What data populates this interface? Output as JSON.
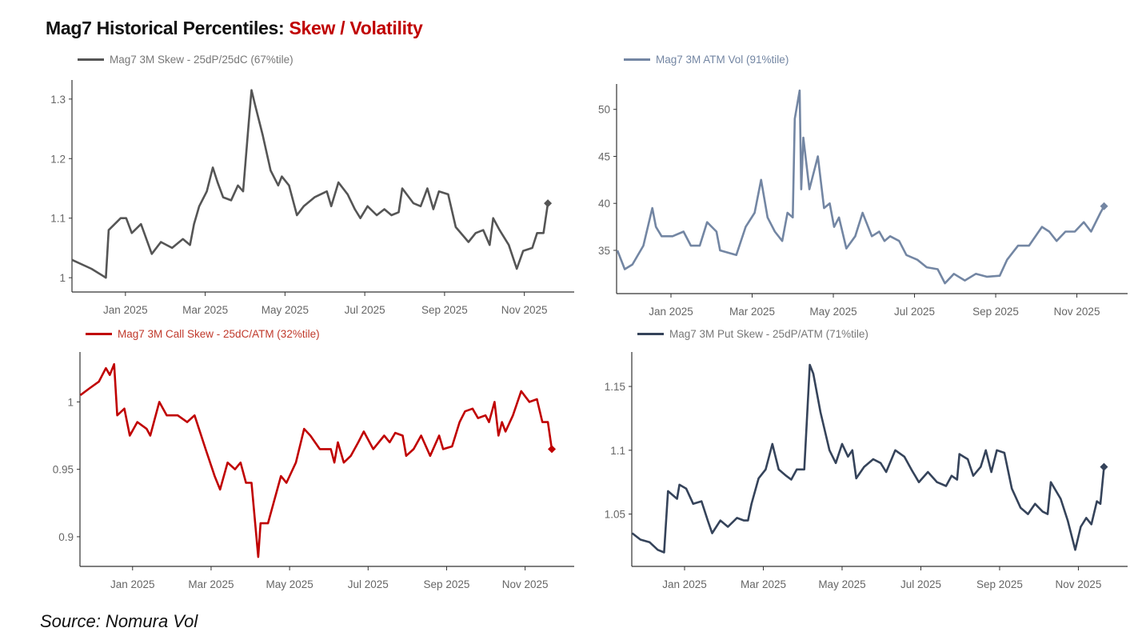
{
  "title": {
    "main": "Mag7 Historical Percentiles: ",
    "accent": "Skew / Volatility"
  },
  "source": "Source: Nomura Vol",
  "chart_data": [
    {
      "type": "line",
      "legend": "Mag7 3M Skew - 25dP/25dC (67%tile)",
      "color": "#555555",
      "xticks": [
        "Jan 2025",
        "Mar 2025",
        "May 2025",
        "Jul 2025",
        "Sep 2025",
        "Nov 2025"
      ],
      "xtick_values": [
        0,
        2,
        4,
        6,
        8,
        10
      ],
      "xlim": [
        -1.34,
        11.25
      ],
      "ylim": [
        0.976,
        1.332
      ],
      "yticks": [
        "1",
        "1.1",
        "1.2",
        "1.3"
      ],
      "ytick_values": [
        1.0,
        1.1,
        1.2,
        1.3
      ],
      "x": [
        -1.34,
        -0.85,
        -0.49,
        -0.42,
        -0.12,
        0.02,
        0.16,
        0.39,
        0.66,
        0.89,
        1.17,
        1.44,
        1.62,
        1.72,
        1.85,
        2.04,
        2.19,
        2.31,
        2.45,
        2.65,
        2.82,
        2.95,
        3.09,
        3.16,
        3.25,
        3.44,
        3.64,
        3.83,
        3.92,
        4.1,
        4.3,
        4.47,
        4.74,
        5.05,
        5.16,
        5.34,
        5.57,
        5.75,
        5.89,
        6.07,
        6.3,
        6.49,
        6.67,
        6.85,
        6.94,
        7.22,
        7.4,
        7.57,
        7.72,
        7.86,
        8.09,
        8.28,
        8.6,
        8.78,
        8.97,
        9.13,
        9.22,
        9.38,
        9.61,
        9.81,
        9.97,
        10.2,
        10.32,
        10.48,
        10.59
      ],
      "y": [
        1.03,
        1.015,
        1.0,
        1.08,
        1.1,
        1.1,
        1.075,
        1.09,
        1.04,
        1.06,
        1.05,
        1.065,
        1.055,
        1.09,
        1.12,
        1.145,
        1.185,
        1.16,
        1.135,
        1.13,
        1.155,
        1.145,
        1.26,
        1.315,
        1.29,
        1.24,
        1.18,
        1.155,
        1.17,
        1.155,
        1.105,
        1.12,
        1.135,
        1.145,
        1.12,
        1.16,
        1.14,
        1.115,
        1.1,
        1.12,
        1.105,
        1.115,
        1.105,
        1.11,
        1.15,
        1.125,
        1.12,
        1.15,
        1.115,
        1.145,
        1.14,
        1.085,
        1.06,
        1.075,
        1.08,
        1.055,
        1.1,
        1.08,
        1.055,
        1.015,
        1.045,
        1.05,
        1.075,
        1.075,
        1.125
      ]
    },
    {
      "type": "line",
      "legend": "Mag7 3M ATM Vol (91%tile)",
      "color": "#7386a3",
      "xticks": [
        "Jan 2025",
        "Mar 2025",
        "May 2025",
        "Jul 2025",
        "Sep 2025",
        "Nov 2025"
      ],
      "xtick_values": [
        0,
        2,
        4,
        6,
        8,
        10
      ],
      "xlim": [
        -1.34,
        11.25
      ],
      "ylim": [
        30.4,
        52.7
      ],
      "yticks": [
        "35",
        "40",
        "45",
        "50"
      ],
      "ytick_values": [
        35,
        40,
        45,
        50
      ],
      "x": [
        -1.32,
        -1.14,
        -0.95,
        -0.68,
        -0.46,
        -0.37,
        -0.23,
        0.04,
        0.31,
        0.49,
        0.71,
        0.89,
        1.12,
        1.21,
        1.61,
        1.84,
        2.06,
        2.22,
        2.38,
        2.56,
        2.74,
        2.87,
        3.0,
        3.05,
        3.17,
        3.21,
        3.26,
        3.41,
        3.62,
        3.77,
        3.91,
        4.02,
        4.14,
        4.32,
        4.54,
        4.72,
        4.95,
        5.13,
        5.26,
        5.4,
        5.62,
        5.8,
        6.07,
        6.3,
        6.57,
        6.75,
        6.97,
        7.24,
        7.51,
        7.78,
        8.1,
        8.28,
        8.55,
        8.82,
        9.14,
        9.32,
        9.5,
        9.72,
        9.95,
        10.17,
        10.35,
        10.58,
        10.67
      ],
      "y": [
        35,
        33,
        33.5,
        35.5,
        39.5,
        37.5,
        36.5,
        36.5,
        37,
        35.5,
        35.5,
        38,
        37,
        35,
        34.5,
        37.5,
        39,
        42.5,
        38.5,
        37,
        36,
        39,
        38.5,
        49,
        52,
        41.5,
        47,
        41.5,
        45,
        39.5,
        40,
        37.5,
        38.5,
        35.2,
        36.5,
        39,
        36.5,
        37,
        36,
        36.5,
        36,
        34.5,
        34,
        33.2,
        33,
        31.5,
        32.5,
        31.8,
        32.5,
        32.2,
        32.3,
        34,
        35.5,
        35.5,
        37.5,
        37,
        36,
        37,
        37,
        38,
        37,
        39,
        39.7
      ]
    },
    {
      "type": "line",
      "legend": "Mag7 3M Call Skew - 25dC/ATM (32%tile)",
      "color": "#c00000",
      "xticks": [
        "Jan 2025",
        "Mar 2025",
        "May 2025",
        "Jul 2025",
        "Sep 2025",
        "Nov 2025"
      ],
      "xtick_values": [
        0,
        2,
        4,
        6,
        8,
        10
      ],
      "xlim": [
        -1.34,
        11.25
      ],
      "ylim": [
        0.878,
        1.037
      ],
      "yticks": [
        "0.9",
        "0.95",
        "1"
      ],
      "ytick_values": [
        0.9,
        0.95,
        1.0
      ],
      "x": [
        -1.33,
        -1.1,
        -0.86,
        -0.68,
        -0.58,
        -0.47,
        -0.39,
        -0.21,
        -0.07,
        0.12,
        0.36,
        0.45,
        0.68,
        0.87,
        1.15,
        1.39,
        1.58,
        1.86,
        2.09,
        2.23,
        2.42,
        2.61,
        2.75,
        2.89,
        3.03,
        3.2,
        3.26,
        3.45,
        3.78,
        3.92,
        4.16,
        4.37,
        4.53,
        4.77,
        5.05,
        5.14,
        5.23,
        5.38,
        5.56,
        5.75,
        5.89,
        6.13,
        6.41,
        6.55,
        6.69,
        6.88,
        6.97,
        7.16,
        7.35,
        7.58,
        7.81,
        7.91,
        8.14,
        8.33,
        8.47,
        8.66,
        8.8,
        8.99,
        9.08,
        9.22,
        9.32,
        9.41,
        9.5,
        9.69,
        9.9,
        10.11,
        10.3,
        10.44,
        10.58,
        10.68
      ],
      "y": [
        1.005,
        1.01,
        1.015,
        1.025,
        1.02,
        1.028,
        0.99,
        0.995,
        0.975,
        0.985,
        0.98,
        0.975,
        1.0,
        0.99,
        0.99,
        0.985,
        0.99,
        0.965,
        0.945,
        0.935,
        0.955,
        0.95,
        0.955,
        0.94,
        0.94,
        0.885,
        0.91,
        0.91,
        0.945,
        0.94,
        0.955,
        0.98,
        0.975,
        0.965,
        0.965,
        0.955,
        0.97,
        0.955,
        0.96,
        0.97,
        0.978,
        0.965,
        0.975,
        0.97,
        0.977,
        0.975,
        0.96,
        0.965,
        0.975,
        0.96,
        0.975,
        0.965,
        0.967,
        0.985,
        0.993,
        0.995,
        0.988,
        0.99,
        0.985,
        1.0,
        0.975,
        0.985,
        0.978,
        0.99,
        1.008,
        1.0,
        1.002,
        0.985,
        0.985,
        0.965
      ]
    },
    {
      "type": "line",
      "legend": "Mag7 3M Put Skew - 25dP/ATM (71%tile)",
      "color": "#35435a",
      "xticks": [
        "Jan 2025",
        "Mar 2025",
        "May 2025",
        "Jul 2025",
        "Sep 2025",
        "Nov 2025"
      ],
      "xtick_values": [
        0,
        2,
        4,
        6,
        8,
        10
      ],
      "xlim": [
        -1.34,
        11.25
      ],
      "ylim": [
        1.009,
        1.177
      ],
      "yticks": [
        "1.05",
        "1.1",
        "1.15"
      ],
      "ytick_values": [
        1.05,
        1.1,
        1.15
      ],
      "x": [
        -1.33,
        -1.12,
        -0.89,
        -0.68,
        -0.52,
        -0.42,
        -0.19,
        -0.13,
        0.04,
        0.22,
        0.43,
        0.59,
        0.7,
        0.91,
        1.1,
        1.33,
        1.51,
        1.61,
        1.7,
        1.88,
        2.06,
        2.23,
        2.39,
        2.58,
        2.71,
        2.85,
        3.04,
        3.18,
        3.27,
        3.45,
        3.68,
        3.84,
        4.0,
        4.15,
        4.26,
        4.36,
        4.56,
        4.79,
        4.98,
        5.12,
        5.35,
        5.58,
        5.76,
        5.95,
        6.18,
        6.41,
        6.64,
        6.78,
        6.92,
        6.98,
        7.19,
        7.33,
        7.52,
        7.65,
        7.79,
        7.93,
        8.12,
        8.31,
        8.53,
        8.72,
        8.9,
        9.09,
        9.22,
        9.3,
        9.55,
        9.73,
        9.92,
        10.06,
        10.2,
        10.33,
        10.47,
        10.56,
        10.65
      ],
      "y": [
        1.035,
        1.03,
        1.028,
        1.022,
        1.02,
        1.068,
        1.062,
        1.073,
        1.07,
        1.058,
        1.06,
        1.045,
        1.035,
        1.045,
        1.04,
        1.047,
        1.045,
        1.045,
        1.058,
        1.078,
        1.085,
        1.105,
        1.085,
        1.08,
        1.077,
        1.085,
        1.085,
        1.167,
        1.16,
        1.13,
        1.1,
        1.09,
        1.105,
        1.095,
        1.1,
        1.078,
        1.087,
        1.093,
        1.09,
        1.083,
        1.1,
        1.095,
        1.085,
        1.075,
        1.083,
        1.075,
        1.072,
        1.08,
        1.077,
        1.097,
        1.093,
        1.08,
        1.087,
        1.1,
        1.083,
        1.1,
        1.098,
        1.07,
        1.055,
        1.05,
        1.058,
        1.052,
        1.05,
        1.075,
        1.062,
        1.045,
        1.022,
        1.04,
        1.047,
        1.042,
        1.06,
        1.058,
        1.087
      ]
    }
  ]
}
